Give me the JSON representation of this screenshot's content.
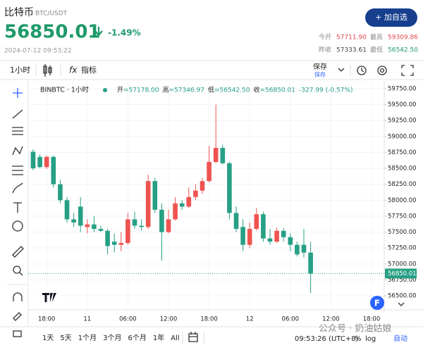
{
  "header": {
    "name": "比特币",
    "pair": "BTC/USDT",
    "price": "56850.01",
    "change": "-1.49%",
    "time": "2024-07-12 09:53:22",
    "button": "+ 加自选",
    "stats": [
      {
        "label": "今开",
        "value": "57711.90"
      },
      {
        "label": "最高",
        "value": "59309.86"
      },
      {
        "label": "昨收",
        "value": "57333.61"
      },
      {
        "label": "最低",
        "value": "56542.50"
      }
    ]
  },
  "toolbar": {
    "interval": "1小时",
    "fx": "fx",
    "indicators": "指标",
    "save": "保存",
    "save_sub": "保存"
  },
  "chart_data": {
    "type": "candlestick",
    "symbol": "BINBTC · 1小时",
    "legend": [
      {
        "label": "开",
        "value": "=57178.00"
      },
      {
        "label": "高",
        "value": "=57346.97"
      },
      {
        "label": "低",
        "value": "=56542.50"
      },
      {
        "label": "收",
        "value": "=56850.01"
      },
      {
        "label": "",
        "value": "-327.99 (-0.57%)"
      }
    ],
    "categories": [
      null,
      null,
      "18:00",
      null,
      null,
      null,
      null,
      null,
      "11",
      null,
      null,
      null,
      null,
      null,
      "06:00",
      null,
      null,
      null,
      null,
      null,
      "12:00",
      null,
      null,
      null,
      null,
      null,
      "18:00",
      null,
      null,
      null,
      null,
      null,
      "12",
      null,
      null,
      null,
      null,
      null,
      "06:00",
      null,
      null,
      null,
      null,
      null,
      "12:00",
      null,
      null,
      null,
      null,
      null,
      "18:00",
      null,
      null
    ],
    "open": [
      58760,
      58680,
      58520,
      58680,
      58250,
      58000,
      57700,
      57900,
      57580,
      57620,
      57550,
      57520,
      57350,
      57300,
      57330,
      57700,
      57600,
      57580,
      58300,
      57850,
      57500,
      57700,
      57950,
      57900,
      58050,
      58150,
      58300,
      58600,
      58820,
      58580,
      57800,
      57580,
      57300,
      57550,
      57780,
      57400,
      57350,
      57520,
      57420,
      57300,
      57300,
      57178,
      null,
      null,
      null,
      null,
      null,
      null,
      null,
      null,
      null,
      null,
      null
    ],
    "high": [
      58800,
      58720,
      58700,
      58700,
      58320,
      58050,
      57800,
      58050,
      57700,
      57750,
      57600,
      57550,
      57480,
      57500,
      57800,
      57820,
      57700,
      58400,
      58350,
      57950,
      57850,
      58050,
      58000,
      58200,
      58250,
      58350,
      58850,
      59500,
      58870,
      58600,
      57900,
      57700,
      57650,
      57880,
      57820,
      57550,
      57570,
      57560,
      57480,
      57350,
      57550,
      57346.97,
      null,
      null,
      null,
      null,
      null,
      null,
      null,
      null,
      null,
      null,
      null
    ],
    "low": [
      58470,
      58500,
      58490,
      58200,
      57950,
      57650,
      57580,
      57500,
      57480,
      57500,
      57500,
      57150,
      57180,
      57200,
      57300,
      57550,
      57520,
      57550,
      57800,
      57050,
      57480,
      57680,
      57850,
      57880,
      58000,
      58100,
      58280,
      58580,
      58560,
      57700,
      57500,
      57200,
      57250,
      57520,
      57350,
      57300,
      57330,
      57350,
      57200,
      57120,
      57100,
      56542.5,
      null,
      null,
      null,
      null,
      null,
      null,
      null,
      null,
      null,
      null,
      null
    ],
    "close": [
      58500,
      58520,
      58680,
      58250,
      58000,
      57700,
      57650,
      57600,
      57620,
      57550,
      57520,
      57280,
      57300,
      57330,
      57700,
      57600,
      57580,
      58300,
      57850,
      57500,
      57700,
      57950,
      57900,
      58050,
      58150,
      58300,
      58600,
      58820,
      58580,
      57800,
      57550,
      57300,
      57550,
      57780,
      57400,
      57350,
      57520,
      57420,
      57300,
      57150,
      57178,
      56850.01,
      null,
      null,
      null,
      null,
      null,
      null,
      null,
      null,
      null,
      null,
      null
    ],
    "up_color": "#ef5350",
    "down_color": "#26a085",
    "ylim": [
      56280,
      59870
    ],
    "yticks": [
      {
        "value": 56500,
        "label": "56500.00"
      },
      {
        "value": 56750,
        "label": "56750.00"
      },
      {
        "value": 57000,
        "label": "57000.00"
      },
      {
        "value": 57250,
        "label": "57250.00"
      },
      {
        "value": 57500,
        "label": "57500.00"
      },
      {
        "value": 57750,
        "label": "57750.00"
      },
      {
        "value": 58000,
        "label": "58000.00"
      },
      {
        "value": 58250,
        "label": "58250.00"
      },
      {
        "value": 58500,
        "label": "58500.00"
      },
      {
        "value": 58750,
        "label": "58750.00"
      },
      {
        "value": 59000,
        "label": "59000.00"
      },
      {
        "value": 59250,
        "label": "59250.00"
      },
      {
        "value": 59500,
        "label": "59500.00"
      },
      {
        "value": 59750,
        "label": "59750.00"
      }
    ],
    "grid": true
  },
  "footer": {
    "ranges": [
      "1天",
      "5天",
      "1个月",
      "3个月",
      "6个月",
      "1年",
      "All"
    ],
    "clock": "09:53:26 (UTC+8)",
    "options": [
      "%",
      "log",
      "自动"
    ],
    "watermark": "公众号 · 奶油姑娘",
    "badge": "F"
  }
}
